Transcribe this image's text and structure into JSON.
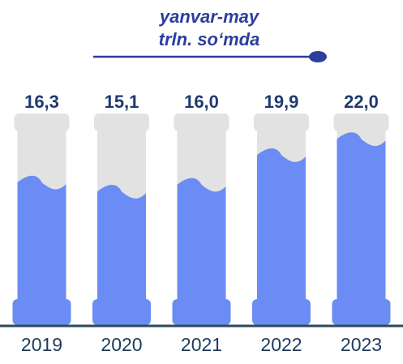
{
  "chart_data": {
    "type": "bar",
    "title": "yanvar-may",
    "subtitle": "trln. so‘mda",
    "categories": [
      "2019",
      "2020",
      "2021",
      "2022",
      "2023"
    ],
    "values": [
      16.3,
      15.1,
      16.0,
      19.9,
      22.0
    ],
    "value_labels": [
      "16,3",
      "15,1",
      "16,0",
      "19,9",
      "22,0"
    ],
    "color": "#6b8cf4"
  }
}
